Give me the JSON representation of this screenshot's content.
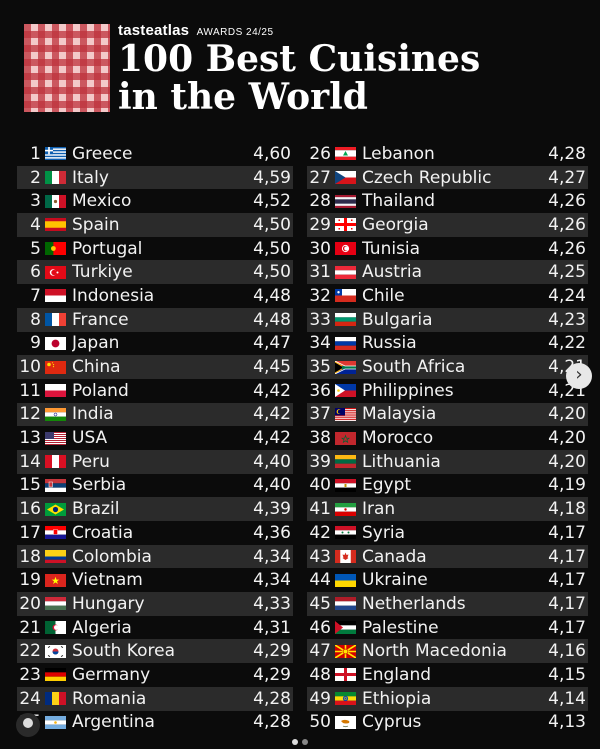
{
  "header": {
    "brand": "tasteatlas",
    "awards": "AWARDS 24/25",
    "title_line1": "100 Best Cuisines",
    "title_line2": "in the World"
  },
  "left_column": [
    {
      "rank": "1",
      "country": "Greece",
      "score": "4,60",
      "flag": "greece"
    },
    {
      "rank": "2",
      "country": "Italy",
      "score": "4,59",
      "flag": "italy"
    },
    {
      "rank": "3",
      "country": "Mexico",
      "score": "4,52",
      "flag": "mexico"
    },
    {
      "rank": "4",
      "country": "Spain",
      "score": "4,50",
      "flag": "spain"
    },
    {
      "rank": "5",
      "country": "Portugal",
      "score": "4,50",
      "flag": "portugal"
    },
    {
      "rank": "6",
      "country": "Turkiye",
      "score": "4,50",
      "flag": "turkiye"
    },
    {
      "rank": "7",
      "country": "Indonesia",
      "score": "4,48",
      "flag": "indonesia"
    },
    {
      "rank": "8",
      "country": "France",
      "score": "4,48",
      "flag": "france"
    },
    {
      "rank": "9",
      "country": "Japan",
      "score": "4,47",
      "flag": "japan"
    },
    {
      "rank": "10",
      "country": "China",
      "score": "4,45",
      "flag": "china"
    },
    {
      "rank": "11",
      "country": "Poland",
      "score": "4,42",
      "flag": "poland"
    },
    {
      "rank": "12",
      "country": "India",
      "score": "4,42",
      "flag": "india"
    },
    {
      "rank": "13",
      "country": "USA",
      "score": "4,42",
      "flag": "usa"
    },
    {
      "rank": "14",
      "country": "Peru",
      "score": "4,40",
      "flag": "peru"
    },
    {
      "rank": "15",
      "country": "Serbia",
      "score": "4,40",
      "flag": "serbia"
    },
    {
      "rank": "16",
      "country": "Brazil",
      "score": "4,39",
      "flag": "brazil"
    },
    {
      "rank": "17",
      "country": "Croatia",
      "score": "4,36",
      "flag": "croatia"
    },
    {
      "rank": "18",
      "country": "Colombia",
      "score": "4,34",
      "flag": "colombia"
    },
    {
      "rank": "19",
      "country": "Vietnam",
      "score": "4,34",
      "flag": "vietnam"
    },
    {
      "rank": "20",
      "country": "Hungary",
      "score": "4,33",
      "flag": "hungary"
    },
    {
      "rank": "21",
      "country": "Algeria",
      "score": "4,31",
      "flag": "algeria"
    },
    {
      "rank": "22",
      "country": "South Korea",
      "score": "4,29",
      "flag": "south-korea"
    },
    {
      "rank": "23",
      "country": "Germany",
      "score": "4,29",
      "flag": "germany"
    },
    {
      "rank": "24",
      "country": "Romania",
      "score": "4,28",
      "flag": "romania"
    },
    {
      "rank": "25",
      "country": "Argentina",
      "score": "4,28",
      "flag": "argentina"
    }
  ],
  "right_column": [
    {
      "rank": "26",
      "country": "Lebanon",
      "score": "4,28",
      "flag": "lebanon"
    },
    {
      "rank": "27",
      "country": "Czech Republic",
      "score": "4,27",
      "flag": "czech"
    },
    {
      "rank": "28",
      "country": "Thailand",
      "score": "4,26",
      "flag": "thailand"
    },
    {
      "rank": "29",
      "country": "Georgia",
      "score": "4,26",
      "flag": "georgia"
    },
    {
      "rank": "30",
      "country": "Tunisia",
      "score": "4,26",
      "flag": "tunisia"
    },
    {
      "rank": "31",
      "country": "Austria",
      "score": "4,25",
      "flag": "austria"
    },
    {
      "rank": "32",
      "country": "Chile",
      "score": "4,24",
      "flag": "chile"
    },
    {
      "rank": "33",
      "country": "Bulgaria",
      "score": "4,23",
      "flag": "bulgaria"
    },
    {
      "rank": "34",
      "country": "Russia",
      "score": "4,22",
      "flag": "russia"
    },
    {
      "rank": "35",
      "country": "South Africa",
      "score": "4,21",
      "flag": "south-africa"
    },
    {
      "rank": "36",
      "country": "Philippines",
      "score": "4,21",
      "flag": "philippines"
    },
    {
      "rank": "37",
      "country": "Malaysia",
      "score": "4,20",
      "flag": "malaysia"
    },
    {
      "rank": "38",
      "country": "Morocco",
      "score": "4,20",
      "flag": "morocco"
    },
    {
      "rank": "39",
      "country": "Lithuania",
      "score": "4,20",
      "flag": "lithuania"
    },
    {
      "rank": "40",
      "country": "Egypt",
      "score": "4,19",
      "flag": "egypt"
    },
    {
      "rank": "41",
      "country": "Iran",
      "score": "4,18",
      "flag": "iran"
    },
    {
      "rank": "42",
      "country": "Syria",
      "score": "4,17",
      "flag": "syria"
    },
    {
      "rank": "43",
      "country": "Canada",
      "score": "4,17",
      "flag": "canada"
    },
    {
      "rank": "44",
      "country": "Ukraine",
      "score": "4,17",
      "flag": "ukraine"
    },
    {
      "rank": "45",
      "country": "Netherlands",
      "score": "4,17",
      "flag": "netherlands"
    },
    {
      "rank": "46",
      "country": "Palestine",
      "score": "4,17",
      "flag": "palestine"
    },
    {
      "rank": "47",
      "country": "North Macedonia",
      "score": "4,16",
      "flag": "north-macedonia"
    },
    {
      "rank": "48",
      "country": "England",
      "score": "4,15",
      "flag": "england"
    },
    {
      "rank": "49",
      "country": "Ethiopia",
      "score": "4,14",
      "flag": "ethiopia"
    },
    {
      "rank": "50",
      "country": "Cyprus",
      "score": "4,13",
      "flag": "cyprus"
    }
  ],
  "nav": {
    "next_icon": "chevron-right-icon",
    "next_glyph": "›"
  }
}
